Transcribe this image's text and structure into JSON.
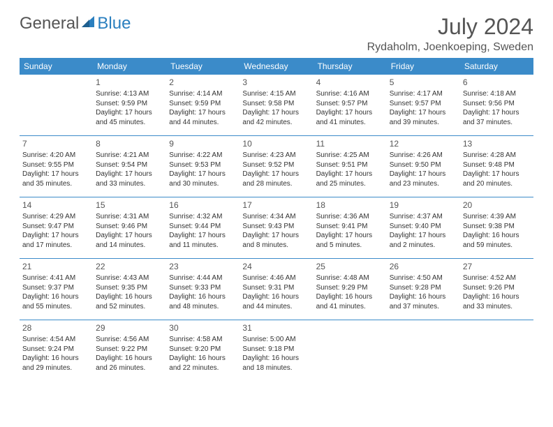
{
  "logo": {
    "text1": "General",
    "text2": "Blue",
    "sail_color": "#2a7fbf"
  },
  "title": "July 2024",
  "location": "Rydaholm, Joenkoeping, Sweden",
  "header_bg": "#3b8bc9",
  "day_headers": [
    "Sunday",
    "Monday",
    "Tuesday",
    "Wednesday",
    "Thursday",
    "Friday",
    "Saturday"
  ],
  "weeks": [
    [
      null,
      {
        "n": "1",
        "sr": "Sunrise: 4:13 AM",
        "ss": "Sunset: 9:59 PM",
        "d1": "Daylight: 17 hours",
        "d2": "and 45 minutes."
      },
      {
        "n": "2",
        "sr": "Sunrise: 4:14 AM",
        "ss": "Sunset: 9:59 PM",
        "d1": "Daylight: 17 hours",
        "d2": "and 44 minutes."
      },
      {
        "n": "3",
        "sr": "Sunrise: 4:15 AM",
        "ss": "Sunset: 9:58 PM",
        "d1": "Daylight: 17 hours",
        "d2": "and 42 minutes."
      },
      {
        "n": "4",
        "sr": "Sunrise: 4:16 AM",
        "ss": "Sunset: 9:57 PM",
        "d1": "Daylight: 17 hours",
        "d2": "and 41 minutes."
      },
      {
        "n": "5",
        "sr": "Sunrise: 4:17 AM",
        "ss": "Sunset: 9:57 PM",
        "d1": "Daylight: 17 hours",
        "d2": "and 39 minutes."
      },
      {
        "n": "6",
        "sr": "Sunrise: 4:18 AM",
        "ss": "Sunset: 9:56 PM",
        "d1": "Daylight: 17 hours",
        "d2": "and 37 minutes."
      }
    ],
    [
      {
        "n": "7",
        "sr": "Sunrise: 4:20 AM",
        "ss": "Sunset: 9:55 PM",
        "d1": "Daylight: 17 hours",
        "d2": "and 35 minutes."
      },
      {
        "n": "8",
        "sr": "Sunrise: 4:21 AM",
        "ss": "Sunset: 9:54 PM",
        "d1": "Daylight: 17 hours",
        "d2": "and 33 minutes."
      },
      {
        "n": "9",
        "sr": "Sunrise: 4:22 AM",
        "ss": "Sunset: 9:53 PM",
        "d1": "Daylight: 17 hours",
        "d2": "and 30 minutes."
      },
      {
        "n": "10",
        "sr": "Sunrise: 4:23 AM",
        "ss": "Sunset: 9:52 PM",
        "d1": "Daylight: 17 hours",
        "d2": "and 28 minutes."
      },
      {
        "n": "11",
        "sr": "Sunrise: 4:25 AM",
        "ss": "Sunset: 9:51 PM",
        "d1": "Daylight: 17 hours",
        "d2": "and 25 minutes."
      },
      {
        "n": "12",
        "sr": "Sunrise: 4:26 AM",
        "ss": "Sunset: 9:50 PM",
        "d1": "Daylight: 17 hours",
        "d2": "and 23 minutes."
      },
      {
        "n": "13",
        "sr": "Sunrise: 4:28 AM",
        "ss": "Sunset: 9:48 PM",
        "d1": "Daylight: 17 hours",
        "d2": "and 20 minutes."
      }
    ],
    [
      {
        "n": "14",
        "sr": "Sunrise: 4:29 AM",
        "ss": "Sunset: 9:47 PM",
        "d1": "Daylight: 17 hours",
        "d2": "and 17 minutes."
      },
      {
        "n": "15",
        "sr": "Sunrise: 4:31 AM",
        "ss": "Sunset: 9:46 PM",
        "d1": "Daylight: 17 hours",
        "d2": "and 14 minutes."
      },
      {
        "n": "16",
        "sr": "Sunrise: 4:32 AM",
        "ss": "Sunset: 9:44 PM",
        "d1": "Daylight: 17 hours",
        "d2": "and 11 minutes."
      },
      {
        "n": "17",
        "sr": "Sunrise: 4:34 AM",
        "ss": "Sunset: 9:43 PM",
        "d1": "Daylight: 17 hours",
        "d2": "and 8 minutes."
      },
      {
        "n": "18",
        "sr": "Sunrise: 4:36 AM",
        "ss": "Sunset: 9:41 PM",
        "d1": "Daylight: 17 hours",
        "d2": "and 5 minutes."
      },
      {
        "n": "19",
        "sr": "Sunrise: 4:37 AM",
        "ss": "Sunset: 9:40 PM",
        "d1": "Daylight: 17 hours",
        "d2": "and 2 minutes."
      },
      {
        "n": "20",
        "sr": "Sunrise: 4:39 AM",
        "ss": "Sunset: 9:38 PM",
        "d1": "Daylight: 16 hours",
        "d2": "and 59 minutes."
      }
    ],
    [
      {
        "n": "21",
        "sr": "Sunrise: 4:41 AM",
        "ss": "Sunset: 9:37 PM",
        "d1": "Daylight: 16 hours",
        "d2": "and 55 minutes."
      },
      {
        "n": "22",
        "sr": "Sunrise: 4:43 AM",
        "ss": "Sunset: 9:35 PM",
        "d1": "Daylight: 16 hours",
        "d2": "and 52 minutes."
      },
      {
        "n": "23",
        "sr": "Sunrise: 4:44 AM",
        "ss": "Sunset: 9:33 PM",
        "d1": "Daylight: 16 hours",
        "d2": "and 48 minutes."
      },
      {
        "n": "24",
        "sr": "Sunrise: 4:46 AM",
        "ss": "Sunset: 9:31 PM",
        "d1": "Daylight: 16 hours",
        "d2": "and 44 minutes."
      },
      {
        "n": "25",
        "sr": "Sunrise: 4:48 AM",
        "ss": "Sunset: 9:29 PM",
        "d1": "Daylight: 16 hours",
        "d2": "and 41 minutes."
      },
      {
        "n": "26",
        "sr": "Sunrise: 4:50 AM",
        "ss": "Sunset: 9:28 PM",
        "d1": "Daylight: 16 hours",
        "d2": "and 37 minutes."
      },
      {
        "n": "27",
        "sr": "Sunrise: 4:52 AM",
        "ss": "Sunset: 9:26 PM",
        "d1": "Daylight: 16 hours",
        "d2": "and 33 minutes."
      }
    ],
    [
      {
        "n": "28",
        "sr": "Sunrise: 4:54 AM",
        "ss": "Sunset: 9:24 PM",
        "d1": "Daylight: 16 hours",
        "d2": "and 29 minutes."
      },
      {
        "n": "29",
        "sr": "Sunrise: 4:56 AM",
        "ss": "Sunset: 9:22 PM",
        "d1": "Daylight: 16 hours",
        "d2": "and 26 minutes."
      },
      {
        "n": "30",
        "sr": "Sunrise: 4:58 AM",
        "ss": "Sunset: 9:20 PM",
        "d1": "Daylight: 16 hours",
        "d2": "and 22 minutes."
      },
      {
        "n": "31",
        "sr": "Sunrise: 5:00 AM",
        "ss": "Sunset: 9:18 PM",
        "d1": "Daylight: 16 hours",
        "d2": "and 18 minutes."
      },
      null,
      null,
      null
    ]
  ]
}
